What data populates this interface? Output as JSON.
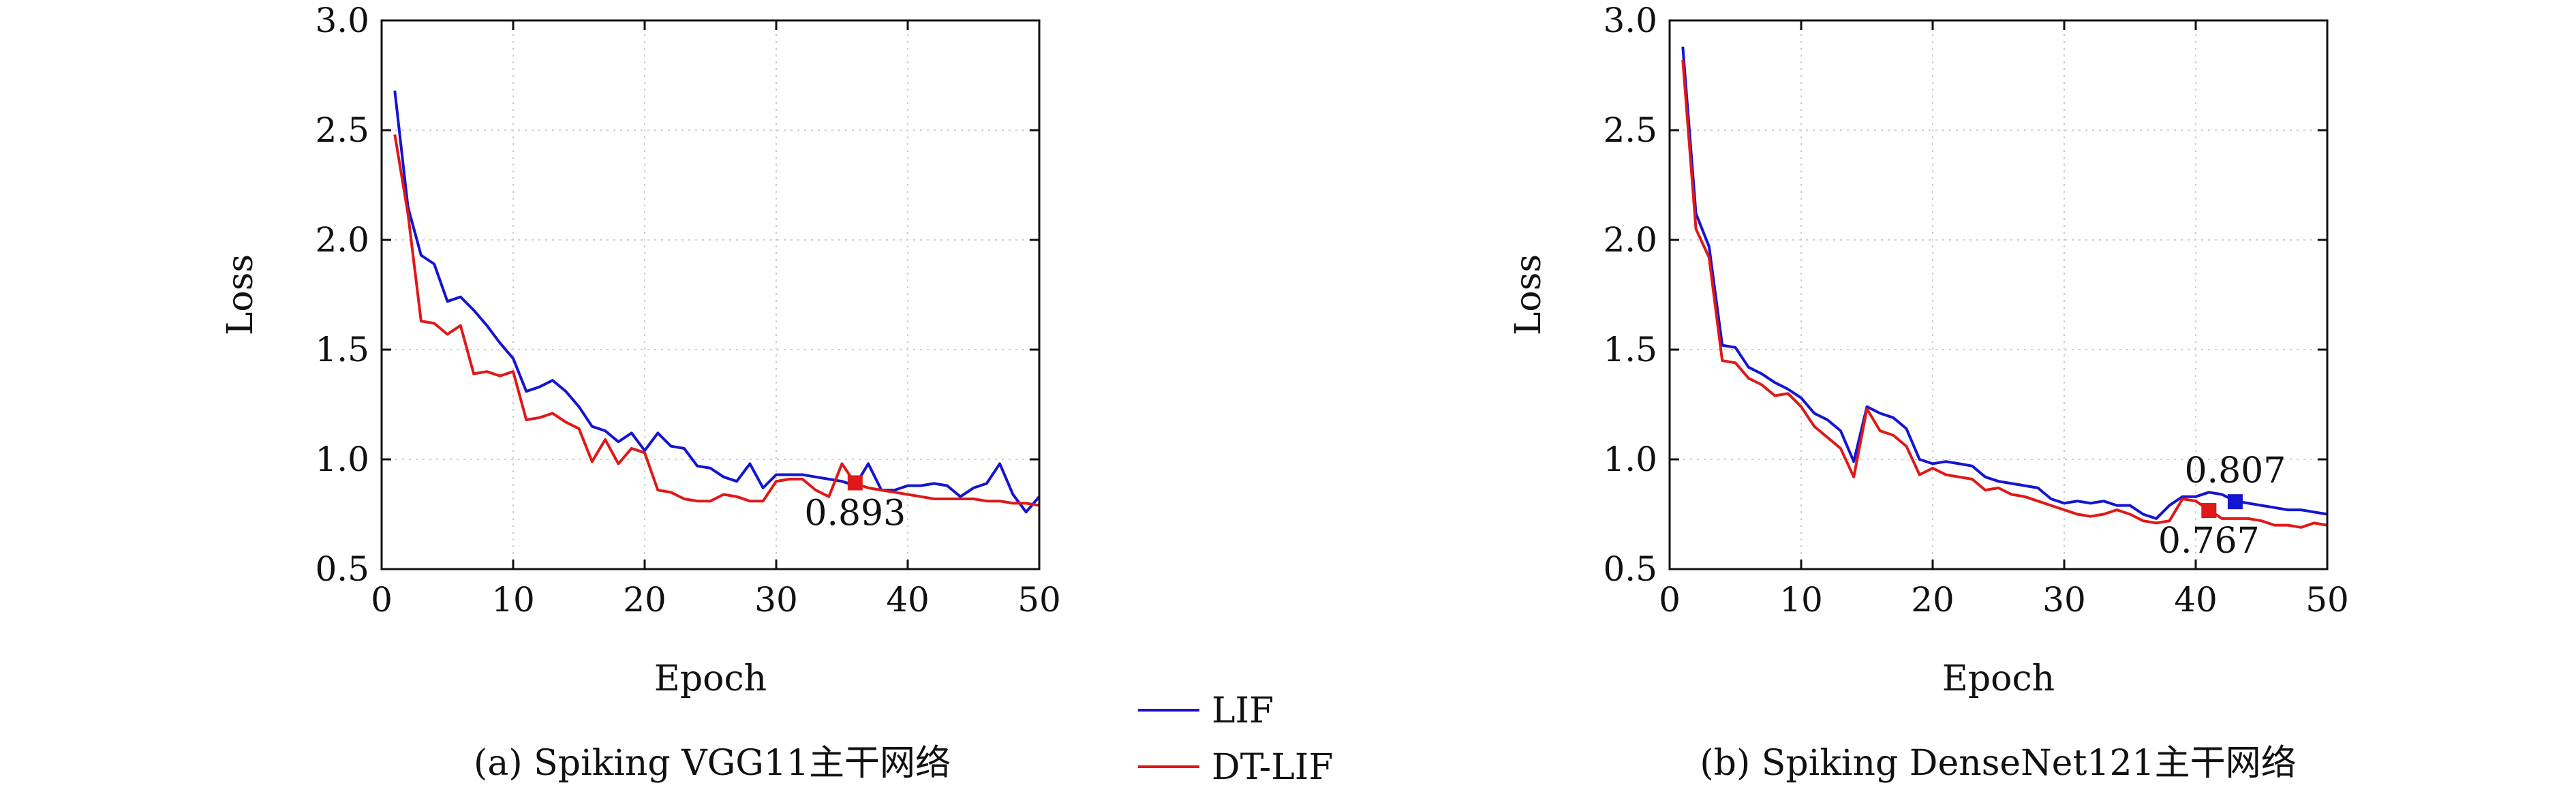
{
  "legend": [
    {
      "name": "LIF",
      "color": "#1414d2"
    },
    {
      "name": "DT-LIF",
      "color": "#e01818"
    }
  ],
  "chart_data": [
    {
      "type": "line",
      "caption": "(a) Spiking VGG11主干网络",
      "xlabel": "Epoch",
      "ylabel": "Loss",
      "xlim": [
        0,
        50
      ],
      "ylim": [
        0.5,
        3.0
      ],
      "xticks": [
        0,
        10,
        20,
        30,
        40,
        50
      ],
      "yticks": [
        0.5,
        1.0,
        1.5,
        2.0,
        2.5,
        3.0
      ],
      "grid": true,
      "series": [
        {
          "name": "LIF",
          "color": "#1414d2",
          "x": [
            1,
            2,
            3,
            4,
            5,
            6,
            7,
            8,
            9,
            10,
            11,
            12,
            13,
            14,
            15,
            16,
            17,
            18,
            19,
            20,
            21,
            22,
            23,
            24,
            25,
            26,
            27,
            28,
            29,
            30,
            31,
            32,
            33,
            34,
            35,
            36,
            37,
            38,
            39,
            40,
            41,
            42,
            43,
            44,
            45,
            46,
            47,
            48,
            49,
            50
          ],
          "y": [
            2.68,
            2.15,
            1.93,
            1.89,
            1.72,
            1.74,
            1.68,
            1.61,
            1.53,
            1.46,
            1.31,
            1.33,
            1.36,
            1.31,
            1.24,
            1.15,
            1.13,
            1.08,
            1.12,
            1.04,
            1.12,
            1.06,
            1.05,
            0.97,
            0.96,
            0.92,
            0.9,
            0.98,
            0.87,
            0.93,
            0.93,
            0.93,
            0.92,
            0.91,
            0.9,
            0.88,
            0.98,
            0.86,
            0.86,
            0.88,
            0.88,
            0.89,
            0.88,
            0.83,
            0.87,
            0.89,
            0.98,
            0.84,
            0.76,
            0.83
          ]
        },
        {
          "name": "DT-LIF",
          "color": "#e01818",
          "x": [
            1,
            2,
            3,
            4,
            5,
            6,
            7,
            8,
            9,
            10,
            11,
            12,
            13,
            14,
            15,
            16,
            17,
            18,
            19,
            20,
            21,
            22,
            23,
            24,
            25,
            26,
            27,
            28,
            29,
            30,
            31,
            32,
            33,
            34,
            35,
            36,
            37,
            38,
            39,
            40,
            41,
            42,
            43,
            44,
            45,
            46,
            47,
            48,
            49,
            50
          ],
          "y": [
            2.48,
            2.12,
            1.63,
            1.62,
            1.57,
            1.61,
            1.39,
            1.4,
            1.38,
            1.4,
            1.18,
            1.19,
            1.21,
            1.17,
            1.14,
            0.99,
            1.09,
            0.98,
            1.05,
            1.03,
            0.86,
            0.85,
            0.82,
            0.81,
            0.81,
            0.84,
            0.83,
            0.81,
            0.81,
            0.9,
            0.91,
            0.91,
            0.86,
            0.83,
            0.98,
            0.89,
            0.87,
            0.86,
            0.85,
            0.84,
            0.83,
            0.82,
            0.82,
            0.82,
            0.82,
            0.81,
            0.81,
            0.8,
            0.8,
            0.79
          ]
        }
      ],
      "markers": [
        {
          "series": "DT-LIF",
          "x": 36,
          "y": 0.893,
          "label": "0.893",
          "color": "#e01818",
          "label_position": "below"
        }
      ]
    },
    {
      "type": "line",
      "caption": "(b) Spiking DenseNet121主干网络",
      "xlabel": "Epoch",
      "ylabel": "Loss",
      "xlim": [
        0,
        50
      ],
      "ylim": [
        0.5,
        3.0
      ],
      "xticks": [
        0,
        10,
        20,
        30,
        40,
        50
      ],
      "yticks": [
        0.5,
        1.0,
        1.5,
        2.0,
        2.5,
        3.0
      ],
      "grid": true,
      "series": [
        {
          "name": "LIF",
          "color": "#1414d2",
          "x": [
            1,
            2,
            3,
            4,
            5,
            6,
            7,
            8,
            9,
            10,
            11,
            12,
            13,
            14,
            15,
            16,
            17,
            18,
            19,
            20,
            21,
            22,
            23,
            24,
            25,
            26,
            27,
            28,
            29,
            30,
            31,
            32,
            33,
            34,
            35,
            36,
            37,
            38,
            39,
            40,
            41,
            42,
            43,
            44,
            45,
            46,
            47,
            48,
            49,
            50
          ],
          "y": [
            2.88,
            2.12,
            1.97,
            1.52,
            1.51,
            1.42,
            1.39,
            1.35,
            1.32,
            1.28,
            1.21,
            1.18,
            1.13,
            0.99,
            1.24,
            1.21,
            1.19,
            1.14,
            1.0,
            0.98,
            0.99,
            0.98,
            0.97,
            0.92,
            0.9,
            0.89,
            0.88,
            0.87,
            0.82,
            0.8,
            0.81,
            0.8,
            0.81,
            0.79,
            0.79,
            0.75,
            0.73,
            0.79,
            0.83,
            0.83,
            0.85,
            0.84,
            0.81,
            0.8,
            0.79,
            0.78,
            0.77,
            0.77,
            0.76,
            0.75
          ]
        },
        {
          "name": "DT-LIF",
          "color": "#e01818",
          "x": [
            1,
            2,
            3,
            4,
            5,
            6,
            7,
            8,
            9,
            10,
            11,
            12,
            13,
            14,
            15,
            16,
            17,
            18,
            19,
            20,
            21,
            22,
            23,
            24,
            25,
            26,
            27,
            28,
            29,
            30,
            31,
            32,
            33,
            34,
            35,
            36,
            37,
            38,
            39,
            40,
            41,
            42,
            43,
            44,
            45,
            46,
            47,
            48,
            49,
            50
          ],
          "y": [
            2.82,
            2.05,
            1.92,
            1.45,
            1.44,
            1.37,
            1.34,
            1.29,
            1.3,
            1.24,
            1.15,
            1.1,
            1.05,
            0.92,
            1.23,
            1.13,
            1.11,
            1.06,
            0.93,
            0.96,
            0.93,
            0.92,
            0.91,
            0.86,
            0.87,
            0.84,
            0.83,
            0.81,
            0.79,
            0.77,
            0.75,
            0.74,
            0.75,
            0.77,
            0.75,
            0.72,
            0.71,
            0.72,
            0.82,
            0.81,
            0.77,
            0.73,
            0.73,
            0.73,
            0.72,
            0.7,
            0.7,
            0.69,
            0.71,
            0.7
          ]
        }
      ],
      "markers": [
        {
          "series": "LIF",
          "x": 43,
          "y": 0.807,
          "label": "0.807",
          "color": "#1414d2",
          "label_position": "above"
        },
        {
          "series": "DT-LIF",
          "x": 41,
          "y": 0.767,
          "label": "0.767",
          "color": "#e01818",
          "label_position": "below"
        }
      ]
    }
  ]
}
